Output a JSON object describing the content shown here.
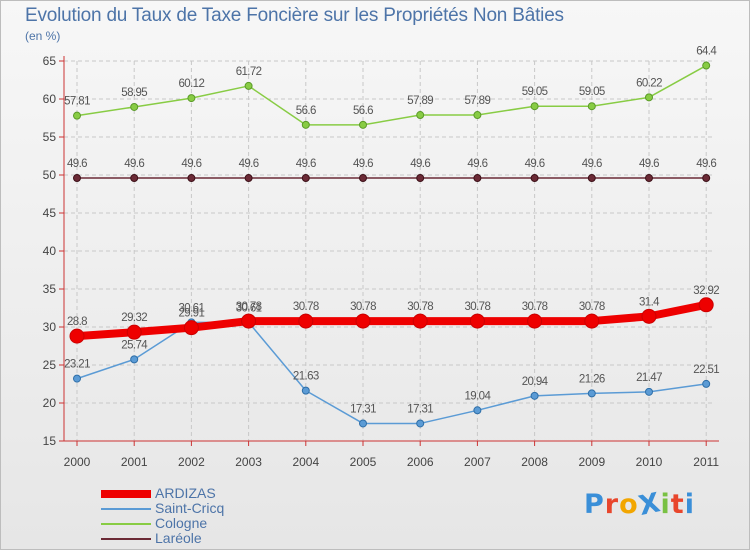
{
  "chart_data": {
    "type": "line",
    "title": "Evolution du Taux de Taxe Foncière sur les Propriétés Non Bâties",
    "ylabel": "(en %)",
    "xlabel": "",
    "x": [
      "2000",
      "2001",
      "2002",
      "2003",
      "2004",
      "2005",
      "2006",
      "2007",
      "2008",
      "2009",
      "2010",
      "2011"
    ],
    "ylim": [
      15,
      65
    ],
    "yticks": [
      15,
      20,
      25,
      30,
      35,
      40,
      45,
      50,
      55,
      60,
      65
    ],
    "grid": true,
    "legend_position": "bottom-left",
    "series": [
      {
        "name": "Cologne",
        "color": "#88cc44",
        "values": [
          57.81,
          58.95,
          60.12,
          61.72,
          56.6,
          56.6,
          57.89,
          57.89,
          59.05,
          59.05,
          60.22,
          64.4
        ],
        "labels": [
          "57.81",
          "58.95",
          "60.12",
          "61.72",
          "56.6",
          "56.6",
          "57.89",
          "57.89",
          "59.05",
          "59.05",
          "60.22",
          "64.4"
        ]
      },
      {
        "name": "Laréole",
        "color": "#6b2a36",
        "values": [
          49.6,
          49.6,
          49.6,
          49.6,
          49.6,
          49.6,
          49.6,
          49.6,
          49.6,
          49.6,
          49.6,
          49.6
        ],
        "labels": [
          "49.6",
          "49.6",
          "49.6",
          "49.6",
          "49.6",
          "49.6",
          "49.6",
          "49.6",
          "49.6",
          "49.6",
          "49.6",
          "49.6"
        ]
      },
      {
        "name": "Saint-Cricq",
        "color": "#5b9bd5",
        "values": [
          23.21,
          25.74,
          30.61,
          30.61,
          21.63,
          17.31,
          17.31,
          19.04,
          20.94,
          21.26,
          21.47,
          22.51
        ],
        "labels": [
          "23.21",
          "25.74",
          "30.61",
          "30.61",
          "21.63",
          "17.31",
          "17.31",
          "19.04",
          "20.94",
          "21.26",
          "21.47",
          "22.51"
        ]
      },
      {
        "name": "ARDIZAS",
        "color": "#ee0000",
        "values": [
          28.8,
          29.32,
          29.91,
          30.78,
          30.78,
          30.78,
          30.78,
          30.78,
          30.78,
          30.78,
          31.4,
          32.92
        ],
        "labels": [
          "28.8",
          "29.32",
          "29.91",
          "30.78",
          "30.78",
          "30.78",
          "30.78",
          "30.78",
          "30.78",
          "30.78",
          "31.4",
          "32.92"
        ]
      }
    ],
    "legend_order": [
      "ARDIZAS",
      "Saint-Cricq",
      "Cologne",
      "Laréole"
    ]
  },
  "logo": {
    "text": "ProXiti",
    "colors": [
      "#3a8fd8",
      "#e8462c",
      "#f2a600",
      "#3a8fd8",
      "#79c143",
      "#e8462c",
      "#3a8fd8"
    ]
  }
}
